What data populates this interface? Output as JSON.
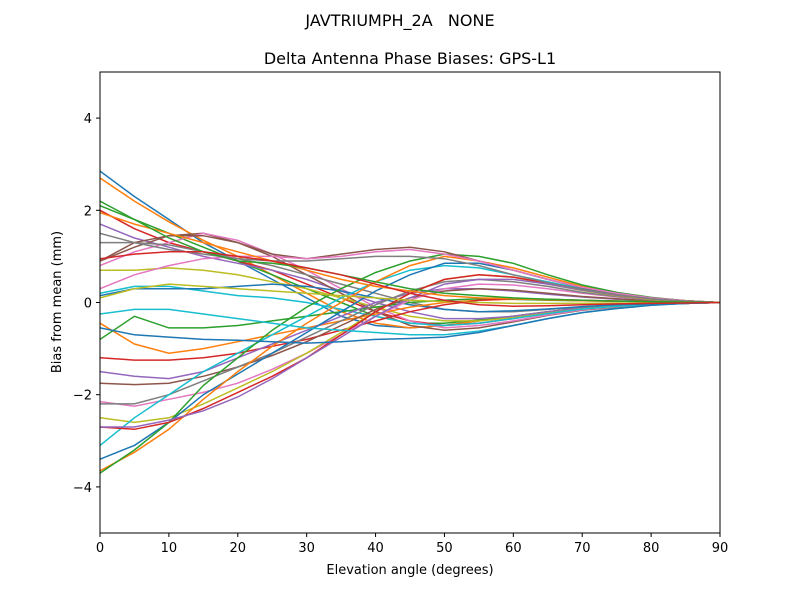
{
  "chart_data": {
    "type": "line",
    "suptitle": "JAVTRIUMPH_2A   NONE",
    "title": "Delta Antenna Phase Biases: GPS-L1",
    "xlabel": "Elevation angle (degrees)",
    "ylabel": "Bias from mean (mm)",
    "xlim": [
      0,
      90
    ],
    "ylim": [
      -5,
      5
    ],
    "xticks": [
      0,
      10,
      20,
      30,
      40,
      50,
      60,
      70,
      80,
      90
    ],
    "xtick_labels": [
      "0",
      "10",
      "20",
      "30",
      "40",
      "50",
      "60",
      "70",
      "80",
      "90"
    ],
    "yticks": [
      -4,
      -2,
      0,
      2,
      4
    ],
    "ytick_labels": [
      "−4",
      "−2",
      "0",
      "2",
      "4"
    ],
    "grid": false,
    "legend": "none",
    "colors": [
      "#1f77b4",
      "#ff7f0e",
      "#2ca02c",
      "#d62728",
      "#9467bd",
      "#8c564b",
      "#e377c2",
      "#7f7f7f",
      "#bcbd22",
      "#17becf"
    ],
    "x": [
      0,
      5,
      10,
      15,
      20,
      25,
      30,
      35,
      40,
      45,
      50,
      55,
      60,
      65,
      70,
      75,
      80,
      85,
      90
    ],
    "series": [
      {
        "values": [
          2.85,
          2.3,
          1.8,
          1.3,
          0.9,
          0.5,
          0.1,
          -0.3,
          -0.5,
          -0.55,
          -0.5,
          -0.4,
          -0.3,
          -0.2,
          -0.12,
          -0.08,
          -0.05,
          -0.02,
          0
        ]
      },
      {
        "values": [
          2.7,
          2.2,
          1.75,
          1.35,
          1.0,
          0.6,
          0.2,
          -0.2,
          -0.45,
          -0.55,
          -0.5,
          -0.4,
          -0.3,
          -0.2,
          -0.12,
          -0.07,
          -0.04,
          -0.02,
          0
        ]
      },
      {
        "values": [
          2.2,
          1.8,
          1.5,
          1.2,
          0.9,
          0.6,
          0.3,
          0.0,
          -0.3,
          -0.45,
          -0.45,
          -0.38,
          -0.3,
          -0.2,
          -0.12,
          -0.07,
          -0.04,
          -0.02,
          0
        ]
      },
      {
        "values": [
          2.0,
          1.6,
          1.3,
          1.1,
          0.9,
          0.7,
          0.4,
          0.1,
          -0.2,
          -0.4,
          -0.5,
          -0.45,
          -0.35,
          -0.22,
          -0.13,
          -0.08,
          -0.04,
          -0.02,
          0
        ]
      },
      {
        "values": [
          1.7,
          1.4,
          1.2,
          1.0,
          0.85,
          0.7,
          0.5,
          0.25,
          0.0,
          -0.2,
          -0.35,
          -0.35,
          -0.3,
          -0.2,
          -0.12,
          -0.07,
          -0.04,
          -0.02,
          0
        ]
      },
      {
        "values": [
          0.9,
          1.2,
          1.45,
          1.5,
          1.3,
          1.0,
          0.6,
          0.2,
          -0.2,
          -0.5,
          -0.6,
          -0.55,
          -0.42,
          -0.28,
          -0.17,
          -0.1,
          -0.05,
          -0.02,
          0
        ]
      },
      {
        "values": [
          0.8,
          1.1,
          1.3,
          1.5,
          1.35,
          1.05,
          0.7,
          0.3,
          -0.1,
          -0.4,
          -0.55,
          -0.5,
          -0.4,
          -0.27,
          -0.16,
          -0.09,
          -0.05,
          -0.02,
          0
        ]
      },
      {
        "values": [
          1.3,
          1.3,
          1.25,
          1.1,
          0.95,
          0.8,
          0.6,
          0.4,
          0.2,
          0.0,
          -0.15,
          -0.2,
          -0.2,
          -0.15,
          -0.1,
          -0.06,
          -0.03,
          -0.01,
          0
        ]
      },
      {
        "values": [
          0.7,
          0.7,
          0.75,
          0.7,
          0.6,
          0.45,
          0.3,
          0.1,
          -0.1,
          -0.3,
          -0.4,
          -0.4,
          -0.33,
          -0.23,
          -0.14,
          -0.08,
          -0.04,
          -0.02,
          0
        ]
      },
      {
        "values": [
          0.2,
          0.35,
          0.35,
          0.25,
          0.15,
          0.1,
          0.0,
          -0.15,
          -0.3,
          -0.45,
          -0.5,
          -0.45,
          -0.35,
          -0.24,
          -0.14,
          -0.08,
          -0.04,
          -0.02,
          0
        ]
      },
      {
        "values": [
          0.15,
          0.3,
          0.3,
          0.3,
          0.35,
          0.4,
          0.35,
          0.25,
          0.1,
          -0.05,
          -0.15,
          -0.2,
          -0.18,
          -0.14,
          -0.09,
          -0.05,
          -0.03,
          -0.01,
          0
        ]
      },
      {
        "values": [
          -0.45,
          -0.9,
          -1.1,
          -1.0,
          -0.85,
          -0.7,
          -0.55,
          -0.4,
          -0.25,
          -0.1,
          0.0,
          0.05,
          0.07,
          0.06,
          0.04,
          0.03,
          0.02,
          0.01,
          0
        ]
      },
      {
        "values": [
          -0.8,
          -0.3,
          -0.55,
          -0.55,
          -0.5,
          -0.4,
          -0.3,
          -0.2,
          -0.1,
          0.0,
          0.05,
          0.08,
          0.07,
          0.05,
          0.04,
          0.03,
          0.02,
          0.01,
          0
        ]
      },
      {
        "values": [
          -1.2,
          -1.25,
          -1.25,
          -1.2,
          -1.1,
          -0.95,
          -0.8,
          -0.6,
          -0.4,
          -0.2,
          -0.05,
          0.05,
          0.08,
          0.07,
          0.05,
          0.03,
          0.02,
          0.01,
          0
        ]
      },
      {
        "values": [
          -1.5,
          -1.6,
          -1.65,
          -1.5,
          -1.2,
          -0.9,
          -0.6,
          -0.3,
          0.0,
          0.2,
          0.3,
          0.3,
          0.25,
          0.18,
          0.12,
          0.07,
          0.04,
          0.02,
          0
        ]
      },
      {
        "values": [
          -1.75,
          -1.78,
          -1.75,
          -1.6,
          -1.4,
          -1.15,
          -0.85,
          -0.5,
          -0.15,
          0.1,
          0.25,
          0.3,
          0.27,
          0.2,
          0.13,
          0.08,
          0.04,
          0.02,
          0
        ]
      },
      {
        "values": [
          -2.15,
          -2.25,
          -2.1,
          -1.95,
          -1.75,
          -1.45,
          -1.1,
          -0.7,
          -0.3,
          0.05,
          0.3,
          0.4,
          0.38,
          0.3,
          0.2,
          0.12,
          0.06,
          0.02,
          0
        ]
      },
      {
        "values": [
          -2.2,
          -2.2,
          -2.0,
          -1.7,
          -1.4,
          -1.1,
          -0.75,
          -0.4,
          -0.05,
          0.25,
          0.45,
          0.5,
          0.45,
          0.35,
          0.22,
          0.13,
          0.06,
          0.02,
          0
        ]
      },
      {
        "values": [
          -2.5,
          -2.6,
          -2.5,
          -2.2,
          -1.85,
          -1.5,
          -1.1,
          -0.65,
          -0.2,
          0.2,
          0.5,
          0.6,
          0.55,
          0.4,
          0.26,
          0.15,
          0.07,
          0.03,
          0
        ]
      },
      {
        "values": [
          -3.1,
          -2.5,
          -2.0,
          -1.5,
          -1.1,
          -0.7,
          -0.3,
          0.1,
          0.45,
          0.7,
          0.8,
          0.75,
          0.6,
          0.45,
          0.3,
          0.18,
          0.09,
          0.03,
          0
        ]
      },
      {
        "values": [
          -3.4,
          -3.1,
          -2.6,
          -2.0,
          -1.55,
          -1.1,
          -0.65,
          -0.2,
          0.25,
          0.6,
          0.85,
          0.85,
          0.7,
          0.5,
          0.32,
          0.19,
          0.1,
          0.04,
          0
        ]
      },
      {
        "values": [
          -3.65,
          -3.25,
          -2.75,
          -2.1,
          -1.5,
          -0.95,
          -0.45,
          0.0,
          0.45,
          0.8,
          1.0,
          0.9,
          0.75,
          0.55,
          0.35,
          0.2,
          0.1,
          0.04,
          0
        ]
      },
      {
        "values": [
          -3.7,
          -3.2,
          -2.6,
          -1.8,
          -1.2,
          -0.6,
          -0.1,
          0.3,
          0.65,
          0.9,
          1.05,
          1.0,
          0.85,
          0.6,
          0.38,
          0.22,
          0.11,
          0.04,
          0
        ]
      },
      {
        "values": [
          -2.7,
          -2.75,
          -2.6,
          -2.3,
          -1.95,
          -1.6,
          -1.2,
          -0.7,
          -0.2,
          0.2,
          0.5,
          0.6,
          0.55,
          0.42,
          0.28,
          0.16,
          0.08,
          0.03,
          0
        ]
      },
      {
        "values": [
          -2.7,
          -2.7,
          -2.55,
          -2.35,
          -2.05,
          -1.65,
          -1.2,
          -0.75,
          -0.3,
          0.1,
          0.4,
          0.5,
          0.5,
          0.4,
          0.27,
          0.16,
          0.08,
          0.03,
          0
        ]
      },
      {
        "values": [
          0.9,
          1.3,
          1.45,
          1.45,
          1.3,
          1.05,
          0.95,
          1.05,
          1.15,
          1.2,
          1.1,
          0.9,
          0.7,
          0.5,
          0.32,
          0.2,
          0.1,
          0.04,
          0
        ]
      },
      {
        "values": [
          0.3,
          0.6,
          0.8,
          0.95,
          1.0,
          1.0,
          0.95,
          1.0,
          1.1,
          1.15,
          1.05,
          0.9,
          0.7,
          0.5,
          0.33,
          0.2,
          0.1,
          0.04,
          0
        ]
      },
      {
        "values": [
          1.5,
          1.3,
          1.15,
          1.05,
          0.95,
          0.9,
          0.9,
          0.95,
          1.0,
          1.0,
          0.95,
          0.8,
          0.6,
          0.43,
          0.28,
          0.17,
          0.08,
          0.03,
          0
        ]
      },
      {
        "values": [
          0.1,
          0.3,
          0.4,
          0.35,
          0.3,
          0.25,
          0.2,
          0.15,
          0.1,
          0.05,
          0.02,
          0.0,
          -0.02,
          -0.02,
          -0.02,
          -0.01,
          -0.01,
          0,
          0
        ]
      },
      {
        "values": [
          -0.25,
          -0.15,
          -0.15,
          -0.25,
          -0.35,
          -0.45,
          -0.55,
          -0.6,
          -0.65,
          -0.7,
          -0.7,
          -0.62,
          -0.5,
          -0.35,
          -0.22,
          -0.13,
          -0.06,
          -0.02,
          0
        ]
      },
      {
        "values": [
          -0.55,
          -0.7,
          -0.75,
          -0.8,
          -0.82,
          -0.85,
          -0.88,
          -0.85,
          -0.8,
          -0.78,
          -0.75,
          -0.65,
          -0.5,
          -0.35,
          -0.22,
          -0.13,
          -0.06,
          -0.02,
          0
        ]
      },
      {
        "values": [
          1.95,
          1.7,
          1.5,
          1.3,
          1.1,
          0.9,
          0.7,
          0.5,
          0.35,
          0.25,
          0.15,
          0.1,
          0.08,
          0.06,
          0.04,
          0.03,
          0.02,
          0.01,
          0
        ]
      },
      {
        "values": [
          2.1,
          1.8,
          1.4,
          1.1,
          0.9,
          0.85,
          0.75,
          0.6,
          0.45,
          0.3,
          0.2,
          0.15,
          0.1,
          0.07,
          0.05,
          0.03,
          0.02,
          0.01,
          0
        ]
      },
      {
        "values": [
          0.95,
          1.05,
          1.1,
          1.1,
          1.0,
          0.9,
          0.75,
          0.6,
          0.4,
          0.2,
          0.05,
          -0.05,
          -0.08,
          -0.07,
          -0.05,
          -0.03,
          -0.02,
          -0.01,
          0
        ]
      }
    ]
  }
}
